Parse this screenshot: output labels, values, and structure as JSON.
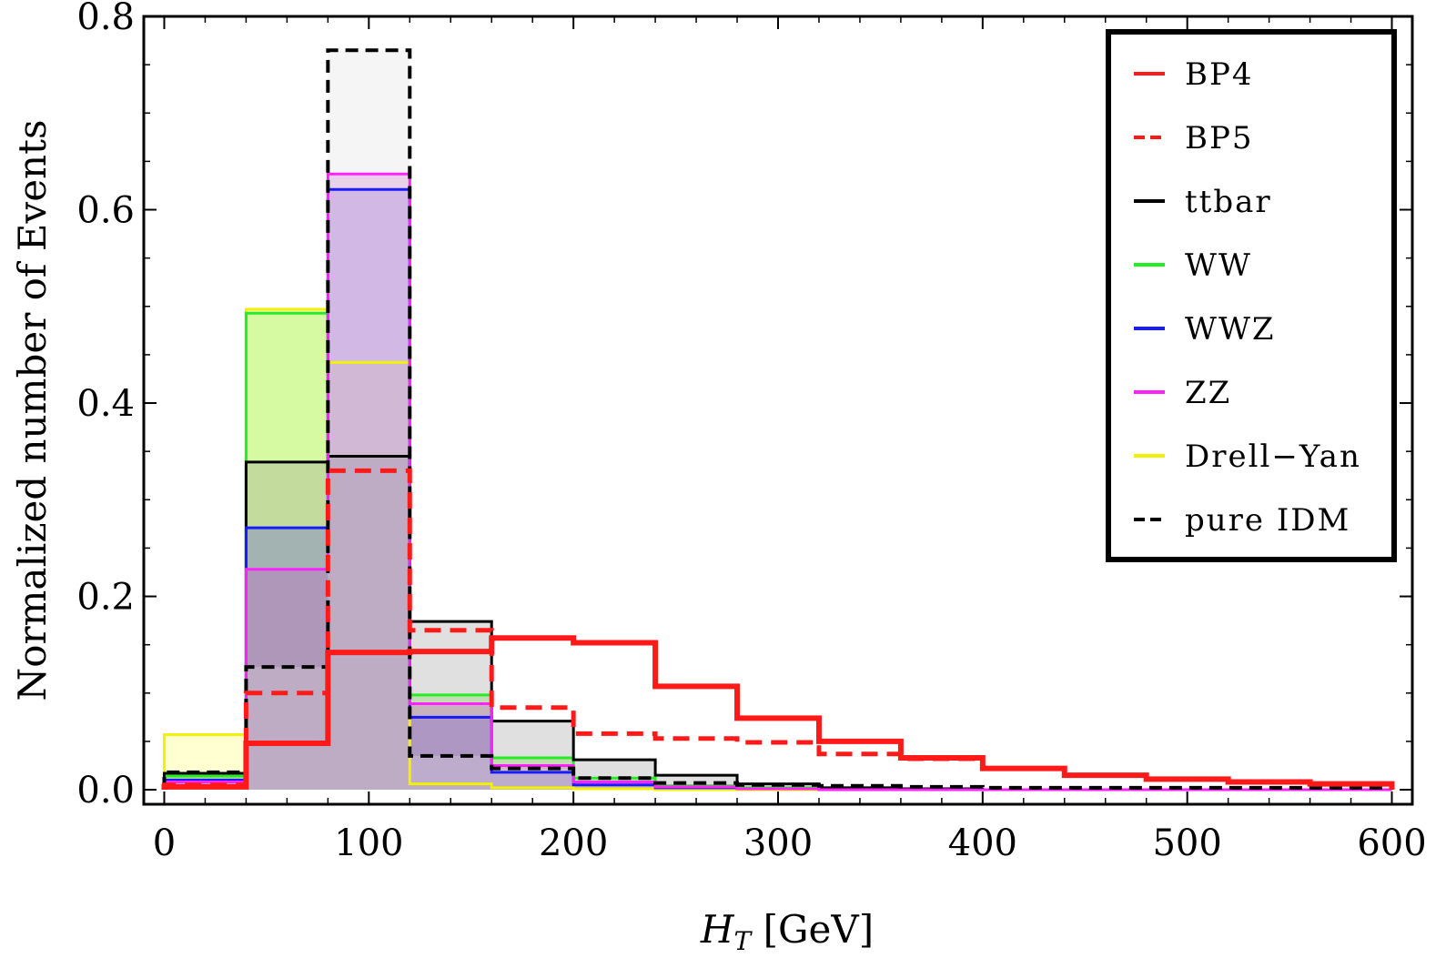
{
  "chart_data": {
    "type": "histogram",
    "title": "",
    "xlabel_main": "H",
    "xlabel_sub": "T",
    "xlabel_unit": " [GeV]",
    "ylabel": "Normalized number of Events",
    "xlim": [
      -10,
      610
    ],
    "ylim": [
      -0.015,
      0.8
    ],
    "xticks": [
      0,
      100,
      200,
      300,
      400,
      500,
      600
    ],
    "xtick_labels": [
      "0",
      "100",
      "200",
      "300",
      "400",
      "500",
      "600"
    ],
    "yticks": [
      0.0,
      0.2,
      0.4,
      0.6,
      0.8
    ],
    "ytick_labels": [
      "0.0",
      "0.2",
      "0.4",
      "0.6",
      "0.8"
    ],
    "bin_edges": [
      0,
      40,
      80,
      120,
      160,
      200,
      240,
      280,
      320,
      360,
      400,
      440,
      480,
      520,
      560,
      600
    ],
    "legend_position": "top-right",
    "series": [
      {
        "name": "Drell-Yan",
        "legend": "Drell−Yan",
        "color": "#f2f200",
        "fill": "#ffff66",
        "dash": "",
        "width": 3,
        "values": [
          0.057,
          0.497,
          0.442,
          0.006,
          0.002,
          0.001,
          0,
          0,
          0,
          0,
          0,
          0,
          0,
          0,
          0
        ]
      },
      {
        "name": "WW",
        "legend": "WW",
        "color": "#22ee22",
        "fill": "#77ee33",
        "dash": "",
        "width": 3,
        "values": [
          0.014,
          0.493,
          0.345,
          0.098,
          0.033,
          0.012,
          0.004,
          0.002,
          0.001,
          0,
          0,
          0,
          0,
          0,
          0
        ]
      },
      {
        "name": "ttbar",
        "legend": "ttbar",
        "color": "#000000",
        "fill": "#999999",
        "dash": "",
        "width": 3,
        "values": [
          0.017,
          0.339,
          0.345,
          0.174,
          0.071,
          0.031,
          0.015,
          0.006,
          0.002,
          0.001,
          0,
          0,
          0,
          0,
          0
        ]
      },
      {
        "name": "WWZ",
        "legend": "WWZ",
        "color": "#1a1aff",
        "fill": "#5555dd",
        "dash": "",
        "width": 3,
        "values": [
          0.01,
          0.271,
          0.621,
          0.075,
          0.018,
          0.005,
          0.002,
          0.001,
          0,
          0,
          0,
          0,
          0,
          0,
          0
        ]
      },
      {
        "name": "ZZ",
        "legend": "ZZ",
        "color": "#ff22ff",
        "fill": "#cc55cc",
        "dash": "",
        "width": 3,
        "values": [
          0.008,
          0.228,
          0.637,
          0.089,
          0.025,
          0.008,
          0.003,
          0.001,
          0,
          0,
          0,
          0,
          0,
          0,
          0
        ]
      },
      {
        "name": "pure IDM",
        "legend": "pure IDM",
        "color": "#000000",
        "fill": "#dddddd",
        "dash": "14 8",
        "width": 4,
        "values": [
          0.018,
          0.127,
          0.765,
          0.035,
          0.022,
          0.012,
          0.007,
          0.005,
          0.004,
          0.003,
          0.002,
          0.002,
          0.002,
          0.002,
          0.002
        ]
      },
      {
        "name": "BP5",
        "legend": "BP5",
        "color": "#ff1a1a",
        "fill": "none",
        "dash": "18 10",
        "width": 5,
        "values": [
          0.005,
          0.1,
          0.33,
          0.165,
          0.085,
          0.058,
          0.053,
          0.049,
          0.037,
          0.032,
          0.022,
          0.015,
          0.011,
          0.008,
          0.006
        ]
      },
      {
        "name": "BP4",
        "legend": "BP4",
        "color": "#ff1a1a",
        "fill": "none",
        "dash": "",
        "width": 6,
        "values": [
          0.003,
          0.048,
          0.142,
          0.143,
          0.157,
          0.152,
          0.107,
          0.074,
          0.05,
          0.033,
          0.022,
          0.015,
          0.011,
          0.008,
          0.006
        ]
      }
    ],
    "legend_order": [
      "BP4",
      "BP5",
      "ttbar",
      "WW",
      "WWZ",
      "ZZ",
      "Drell-Yan",
      "pure IDM"
    ]
  }
}
